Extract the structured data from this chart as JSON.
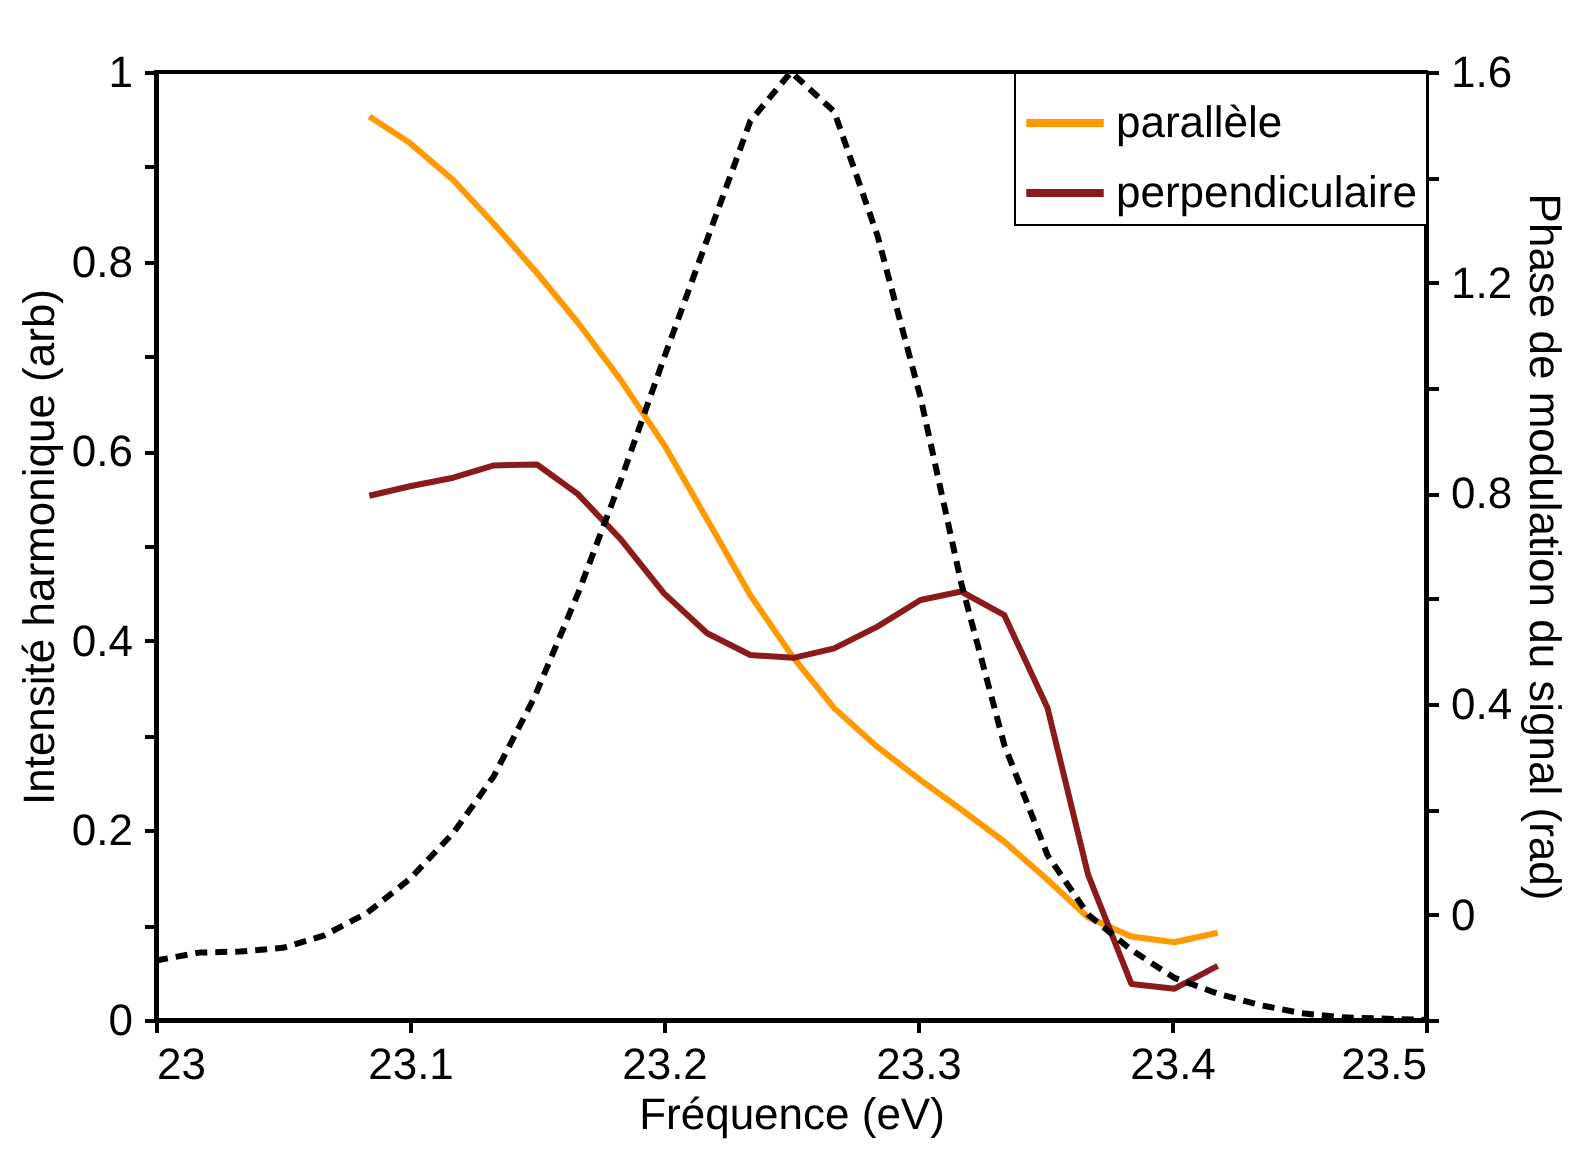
{
  "chart_data": {
    "type": "line",
    "xlabel": "Fréquence (eV)",
    "ylabel": "Intensité harmonique (arb)",
    "y2label": "Phase de modulation du signal (rad)",
    "xlim": [
      23,
      23.5
    ],
    "xticks": [
      23,
      23.1,
      23.2,
      23.3,
      23.4,
      23.5
    ],
    "ylim": [
      0,
      1
    ],
    "yticks": [
      0,
      {
        "value": 0.1,
        "label": null
      },
      0.2,
      {
        "value": 0.3,
        "label": null
      },
      0.4,
      {
        "value": 0.5,
        "label": null
      },
      0.6,
      {
        "value": 0.7,
        "label": null
      },
      0.8,
      {
        "value": 0.9,
        "label": null
      },
      1
    ],
    "y2lim": [
      -0.2,
      1.6
    ],
    "y2ticks": [
      {
        "value": -0.2,
        "label": null
      },
      0,
      {
        "value": 0.2,
        "label": null
      },
      0.4,
      {
        "value": 0.6,
        "label": null
      },
      0.8,
      {
        "value": 1.0,
        "label": null
      },
      1.2,
      {
        "value": 1.4,
        "label": null
      },
      1.6
    ],
    "legend": "top right",
    "grid": false,
    "marker": "none",
    "series": [
      {
        "name": "parallèle",
        "color": "#ff9900",
        "line_style": "solid",
        "x": [
          23.084,
          23.1,
          23.117,
          23.133,
          23.15,
          23.166,
          23.183,
          23.2,
          23.217,
          23.234,
          23.251,
          23.267,
          23.284,
          23.301,
          23.317,
          23.334,
          23.351,
          23.367,
          23.384,
          23.401,
          23.418
        ],
        "values": [
          0.953,
          0.925,
          0.886,
          0.84,
          0.788,
          0.736,
          0.675,
          0.607,
          0.528,
          0.448,
          0.382,
          0.329,
          0.288,
          0.253,
          0.222,
          0.188,
          0.148,
          0.108,
          0.088,
          0.082,
          0.092
        ]
      },
      {
        "name": "perpendiculaire",
        "color": "#8b1a1a",
        "line_style": "solid",
        "x": [
          23.084,
          23.1,
          23.117,
          23.133,
          23.15,
          23.166,
          23.183,
          23.2,
          23.217,
          23.234,
          23.251,
          23.267,
          23.284,
          23.301,
          23.317,
          23.334,
          23.351,
          23.367,
          23.384,
          23.401,
          23.418
        ],
        "values": [
          0.553,
          0.563,
          0.572,
          0.585,
          0.586,
          0.555,
          0.507,
          0.45,
          0.408,
          0.385,
          0.382,
          0.392,
          0.415,
          0.443,
          0.452,
          0.427,
          0.329,
          0.153,
          0.038,
          0.033,
          0.057
        ]
      },
      {
        "color": "#000000",
        "line_style": "dashed",
        "axis": "y2",
        "x": [
          23.0,
          23.017,
          23.033,
          23.05,
          23.066,
          23.083,
          23.1,
          23.117,
          23.133,
          23.149,
          23.166,
          23.183,
          23.2,
          23.217,
          23.234,
          23.25,
          23.267,
          23.284,
          23.301,
          23.317,
          23.334,
          23.351,
          23.367,
          23.384,
          23.401,
          23.418,
          23.435,
          23.451,
          23.467,
          23.5
        ],
        "values": [
          -0.087,
          -0.072,
          -0.07,
          -0.063,
          -0.04,
          0.003,
          0.068,
          0.155,
          0.263,
          0.413,
          0.608,
          0.825,
          1.057,
          1.282,
          1.507,
          1.6,
          1.525,
          1.29,
          0.982,
          0.63,
          0.322,
          0.113,
          0.0,
          -0.067,
          -0.12,
          -0.15,
          -0.172,
          -0.187,
          -0.195,
          -0.2
        ]
      }
    ]
  }
}
